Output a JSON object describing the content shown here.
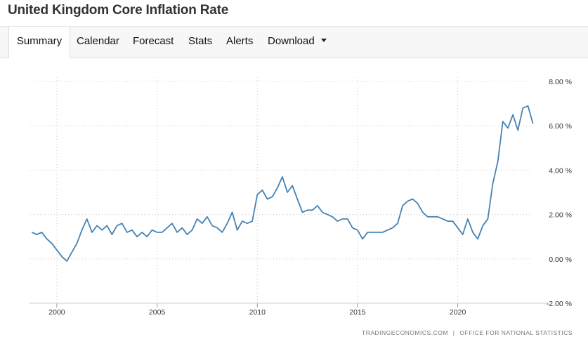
{
  "header": {
    "title": "United Kingdom Core Inflation Rate"
  },
  "tabs": [
    {
      "label": "Summary"
    },
    {
      "label": "Calendar"
    },
    {
      "label": "Forecast"
    },
    {
      "label": "Stats"
    },
    {
      "label": "Alerts"
    },
    {
      "label": "Download"
    }
  ],
  "source": {
    "left": "TRADINGECONOMICS.COM",
    "separator": "|",
    "right": "OFFICE FOR NATIONAL STATISTICS"
  },
  "colors": {
    "line": "#4682b4",
    "grid": "#cccccc",
    "axis_text": "#333333"
  },
  "chart_data": {
    "type": "line",
    "title": "United Kingdom Core Inflation Rate",
    "xlabel": "",
    "ylabel": "",
    "xlim": [
      1998.6,
      2024.5
    ],
    "ylim": [
      -2,
      8
    ],
    "x_ticks": [
      2000,
      2005,
      2010,
      2015,
      2020
    ],
    "x_tick_labels": [
      "2000",
      "2005",
      "2010",
      "2015",
      "2020"
    ],
    "y_ticks": [
      8,
      6,
      4,
      2,
      0,
      -2
    ],
    "y_tick_labels": [
      "8.00 %",
      "6.00 %",
      "4.00 %",
      "2.00 %",
      "0.00 %",
      "-2.00 %"
    ],
    "grid": true,
    "series": [
      {
        "name": "Core Inflation Rate",
        "points": [
          [
            1998.75,
            1.2
          ],
          [
            1999.0,
            1.1
          ],
          [
            1999.25,
            1.2
          ],
          [
            1999.5,
            0.9
          ],
          [
            1999.75,
            0.7
          ],
          [
            2000.0,
            0.4
          ],
          [
            2000.25,
            0.1
          ],
          [
            2000.5,
            -0.1
          ],
          [
            2000.75,
            0.3
          ],
          [
            2001.0,
            0.7
          ],
          [
            2001.25,
            1.3
          ],
          [
            2001.5,
            1.8
          ],
          [
            2001.75,
            1.2
          ],
          [
            2002.0,
            1.5
          ],
          [
            2002.25,
            1.3
          ],
          [
            2002.5,
            1.5
          ],
          [
            2002.75,
            1.1
          ],
          [
            2003.0,
            1.5
          ],
          [
            2003.25,
            1.6
          ],
          [
            2003.5,
            1.2
          ],
          [
            2003.75,
            1.3
          ],
          [
            2004.0,
            1.0
          ],
          [
            2004.25,
            1.2
          ],
          [
            2004.5,
            1.0
          ],
          [
            2004.75,
            1.3
          ],
          [
            2005.0,
            1.2
          ],
          [
            2005.25,
            1.2
          ],
          [
            2005.5,
            1.4
          ],
          [
            2005.75,
            1.6
          ],
          [
            2006.0,
            1.2
          ],
          [
            2006.25,
            1.4
          ],
          [
            2006.5,
            1.1
          ],
          [
            2006.75,
            1.3
          ],
          [
            2007.0,
            1.8
          ],
          [
            2007.25,
            1.6
          ],
          [
            2007.5,
            1.9
          ],
          [
            2007.75,
            1.5
          ],
          [
            2008.0,
            1.4
          ],
          [
            2008.25,
            1.2
          ],
          [
            2008.5,
            1.6
          ],
          [
            2008.75,
            2.1
          ],
          [
            2009.0,
            1.3
          ],
          [
            2009.25,
            1.7
          ],
          [
            2009.5,
            1.6
          ],
          [
            2009.75,
            1.7
          ],
          [
            2010.0,
            2.9
          ],
          [
            2010.25,
            3.1
          ],
          [
            2010.5,
            2.7
          ],
          [
            2010.75,
            2.8
          ],
          [
            2011.0,
            3.2
          ],
          [
            2011.25,
            3.7
          ],
          [
            2011.5,
            3.0
          ],
          [
            2011.75,
            3.3
          ],
          [
            2012.0,
            2.7
          ],
          [
            2012.25,
            2.1
          ],
          [
            2012.5,
            2.2
          ],
          [
            2012.75,
            2.2
          ],
          [
            2013.0,
            2.4
          ],
          [
            2013.25,
            2.1
          ],
          [
            2013.5,
            2.0
          ],
          [
            2013.75,
            1.9
          ],
          [
            2014.0,
            1.7
          ],
          [
            2014.25,
            1.8
          ],
          [
            2014.5,
            1.8
          ],
          [
            2014.75,
            1.4
          ],
          [
            2015.0,
            1.3
          ],
          [
            2015.25,
            0.9
          ],
          [
            2015.5,
            1.2
          ],
          [
            2015.75,
            1.2
          ],
          [
            2016.0,
            1.2
          ],
          [
            2016.25,
            1.2
          ],
          [
            2016.5,
            1.3
          ],
          [
            2016.75,
            1.4
          ],
          [
            2017.0,
            1.6
          ],
          [
            2017.25,
            2.4
          ],
          [
            2017.5,
            2.6
          ],
          [
            2017.75,
            2.7
          ],
          [
            2018.0,
            2.5
          ],
          [
            2018.25,
            2.1
          ],
          [
            2018.5,
            1.9
          ],
          [
            2018.75,
            1.9
          ],
          [
            2019.0,
            1.9
          ],
          [
            2019.25,
            1.8
          ],
          [
            2019.5,
            1.7
          ],
          [
            2019.75,
            1.7
          ],
          [
            2020.0,
            1.4
          ],
          [
            2020.25,
            1.1
          ],
          [
            2020.5,
            1.8
          ],
          [
            2020.75,
            1.2
          ],
          [
            2021.0,
            0.9
          ],
          [
            2021.25,
            1.5
          ],
          [
            2021.5,
            1.8
          ],
          [
            2021.75,
            3.4
          ],
          [
            2022.0,
            4.4
          ],
          [
            2022.25,
            6.2
          ],
          [
            2022.5,
            5.9
          ],
          [
            2022.75,
            6.5
          ],
          [
            2023.0,
            5.8
          ],
          [
            2023.25,
            6.8
          ],
          [
            2023.5,
            6.9
          ],
          [
            2023.75,
            6.1
          ]
        ]
      }
    ]
  }
}
